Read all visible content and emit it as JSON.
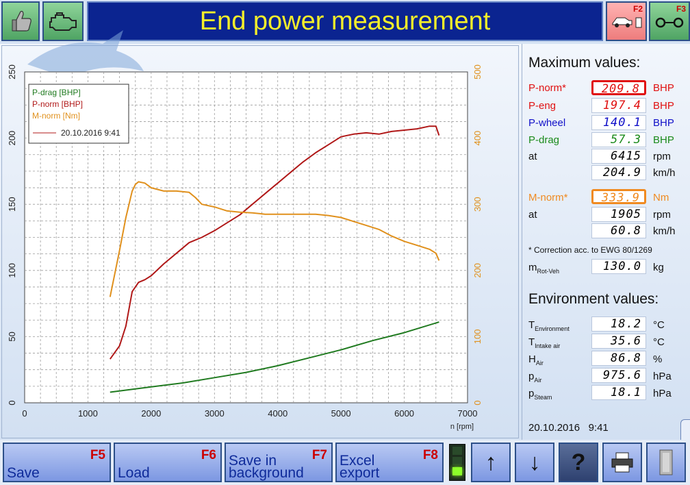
{
  "header": {
    "title": "End power measurement",
    "f2_key": "F2",
    "f3_key": "F3"
  },
  "chart_data": {
    "type": "line",
    "xlabel": "n [rpm]",
    "xlim": [
      0,
      7000
    ],
    "x_ticks": [
      "0",
      "1000",
      "2000",
      "3000",
      "4000",
      "5000",
      "6000",
      "7000"
    ],
    "left_ylim": [
      0,
      250
    ],
    "left_ticks": [
      "0",
      "50",
      "100",
      "150",
      "200",
      "250"
    ],
    "right_ylim": [
      0,
      500
    ],
    "right_ticks": [
      "0",
      "100",
      "200",
      "300",
      "400",
      "500"
    ],
    "grid": true,
    "legend_position": "top-left",
    "legend": [
      "P-drag [BHP]",
      "P-norm [BHP]",
      "M-norm [Nm]"
    ],
    "legend_run": "20.10.2016 9:41",
    "series": [
      {
        "name": "P-drag [BHP]",
        "axis": "left",
        "color": "#1f7a1f",
        "x": [
          1350,
          2000,
          2500,
          3000,
          3500,
          4000,
          4500,
          5000,
          5500,
          6000,
          6550
        ],
        "y": [
          8,
          12,
          15,
          19,
          23,
          28,
          34,
          40,
          47,
          53,
          61
        ]
      },
      {
        "name": "P-norm [BHP]",
        "axis": "left",
        "color": "#b01818",
        "x": [
          1350,
          1500,
          1600,
          1700,
          1800,
          1900,
          2000,
          2200,
          2400,
          2600,
          2800,
          3000,
          3200,
          3400,
          3600,
          3800,
          4000,
          4200,
          4400,
          4600,
          4800,
          5000,
          5200,
          5400,
          5600,
          5800,
          6000,
          6200,
          6400,
          6500,
          6550
        ],
        "y": [
          33,
          43,
          58,
          84,
          91,
          93,
          96,
          105,
          113,
          121,
          125,
          130,
          136,
          142,
          150,
          158,
          166,
          174,
          182,
          189,
          195,
          201,
          203,
          204,
          203,
          205,
          206,
          207,
          209,
          209,
          202
        ]
      },
      {
        "name": "M-norm [Nm]",
        "axis": "right",
        "color": "#e0901c",
        "x": [
          1350,
          1500,
          1600,
          1700,
          1750,
          1800,
          1900,
          2000,
          2200,
          2400,
          2600,
          2700,
          2800,
          3000,
          3200,
          3400,
          3600,
          3800,
          4000,
          4300,
          4600,
          4800,
          5000,
          5200,
          5400,
          5600,
          5800,
          6000,
          6200,
          6400,
          6500,
          6550
        ],
        "y": [
          160,
          230,
          280,
          320,
          330,
          334,
          332,
          325,
          320,
          320,
          318,
          310,
          300,
          296,
          290,
          288,
          287,
          285,
          285,
          285,
          285,
          283,
          280,
          274,
          268,
          262,
          252,
          244,
          238,
          232,
          226,
          215
        ]
      }
    ]
  },
  "max_values": {
    "title": "Maximum values:",
    "p_norm": {
      "label": "P-norm*",
      "value": "209.8",
      "unit": "BHP",
      "color": "#e01010"
    },
    "p_eng": {
      "label": "P-eng",
      "value": "197.4",
      "unit": "BHP",
      "color": "#e01010"
    },
    "p_wheel": {
      "label": "P-wheel",
      "value": "140.1",
      "unit": "BHP",
      "color": "#1010c8"
    },
    "p_drag": {
      "label": "P-drag",
      "value": "57.3",
      "unit": "BHP",
      "color": "#1a8a1a"
    },
    "at_rpm": {
      "label": "at",
      "value": "6415",
      "unit": "rpm"
    },
    "at_kmh": {
      "value": "204.9",
      "unit": "km/h"
    },
    "m_norm": {
      "label": "M-norm*",
      "value": "333.9",
      "unit": "Nm",
      "color": "#f08a20"
    },
    "m_at_rpm": {
      "label": "at",
      "value": "1905",
      "unit": "rpm"
    },
    "m_at_kmh": {
      "value": "60.8",
      "unit": "km/h"
    },
    "note": "* Correction acc. to EWG 80/1269",
    "m_rot_veh": {
      "label": "m",
      "sub": "Rot-Veh",
      "value": "130.0",
      "unit": "kg"
    }
  },
  "environment": {
    "title": "Environment values:",
    "t_env": {
      "label": "T",
      "sub": "Environment",
      "value": "18.2",
      "unit": "°C"
    },
    "t_intake": {
      "label": "T",
      "sub": "Intake air",
      "value": "35.6",
      "unit": "°C"
    },
    "h_air": {
      "label": "H",
      "sub": "Air",
      "value": "86.8",
      "unit": "%"
    },
    "p_air": {
      "label": "p",
      "sub": "Air",
      "value": "975.6",
      "unit": "hPa"
    },
    "p_steam": {
      "label": "p",
      "sub": "Steam",
      "value": "18.1",
      "unit": "hPa"
    },
    "datetime": "20.10.2016   9:41"
  },
  "footer": {
    "save": {
      "label": "Save",
      "key": "F5"
    },
    "load": {
      "label": "Load",
      "key": "F6"
    },
    "save_bg": {
      "label_1": "Save in",
      "label_2": "background",
      "key": "F7"
    },
    "excel": {
      "label_1": "Excel",
      "label_2": "export",
      "key": "F8"
    },
    "up_icon": "↑",
    "down_icon": "↓",
    "help_icon": "?"
  }
}
